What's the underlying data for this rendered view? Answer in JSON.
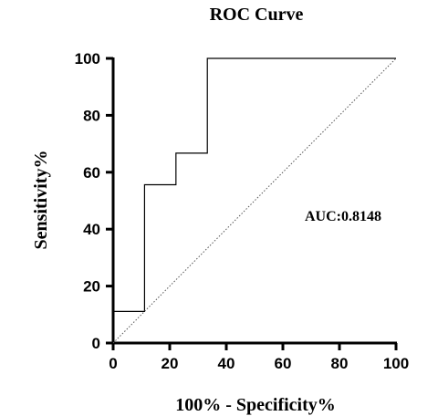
{
  "chart_data": {
    "type": "line",
    "title": "ROC Curve",
    "xlabel": "100% - Specificity%",
    "ylabel": "Sensitivity%",
    "xlim": [
      0,
      100
    ],
    "ylim": [
      0,
      100
    ],
    "xticks": [
      0,
      20,
      40,
      60,
      80,
      100
    ],
    "yticks": [
      0,
      20,
      40,
      60,
      80,
      100
    ],
    "grid": false,
    "series": [
      {
        "x": [
          0,
          0,
          11.1,
          11.1,
          22.2,
          22.2,
          33.3,
          33.3,
          100
        ],
        "y": [
          0,
          11.1,
          11.1,
          55.6,
          55.6,
          66.7,
          66.7,
          100,
          100
        ]
      },
      {
        "x": [
          0,
          100
        ],
        "y": [
          0,
          100
        ],
        "style": "dotted"
      }
    ],
    "annotation": "AUC:0.8148"
  }
}
